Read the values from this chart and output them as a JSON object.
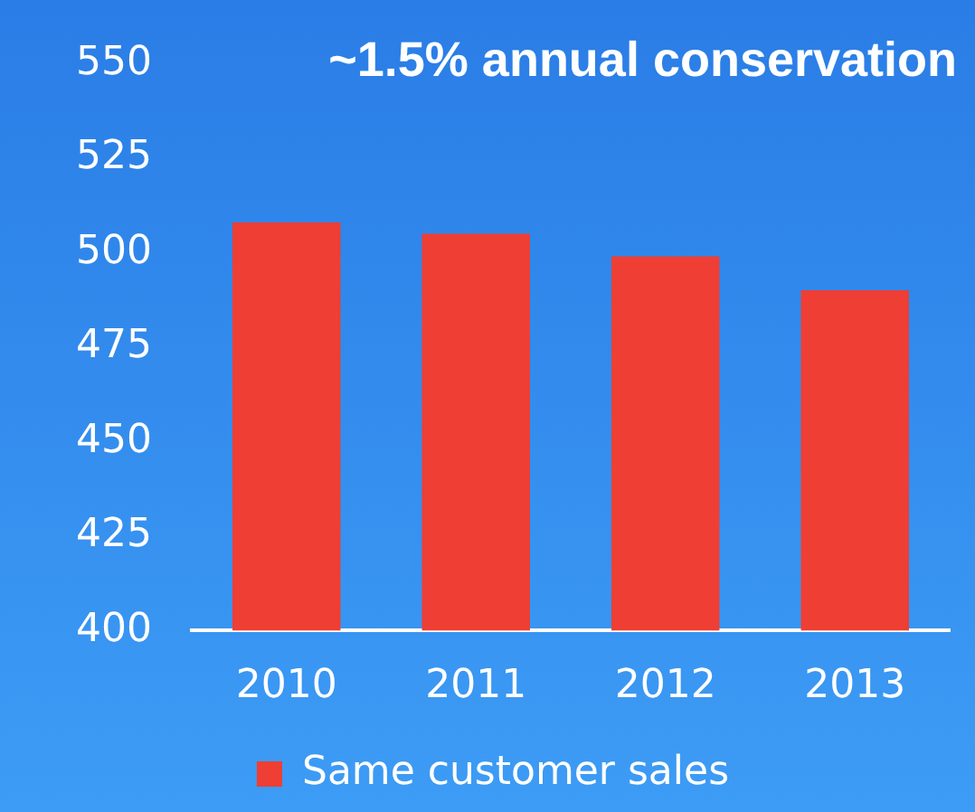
{
  "chart_data": {
    "type": "bar",
    "title": "~1.5% annual conservation",
    "categories": [
      "2010",
      "2011",
      "2012",
      "2013"
    ],
    "series": [
      {
        "name": "Same customer sales",
        "color": "#ef3e33",
        "values": [
          508,
          505,
          499,
          490
        ]
      }
    ],
    "ylim": [
      400,
      550
    ],
    "yticks": [
      400,
      425,
      450,
      475,
      500,
      525,
      550
    ],
    "grid": false,
    "legend": "bottom"
  }
}
